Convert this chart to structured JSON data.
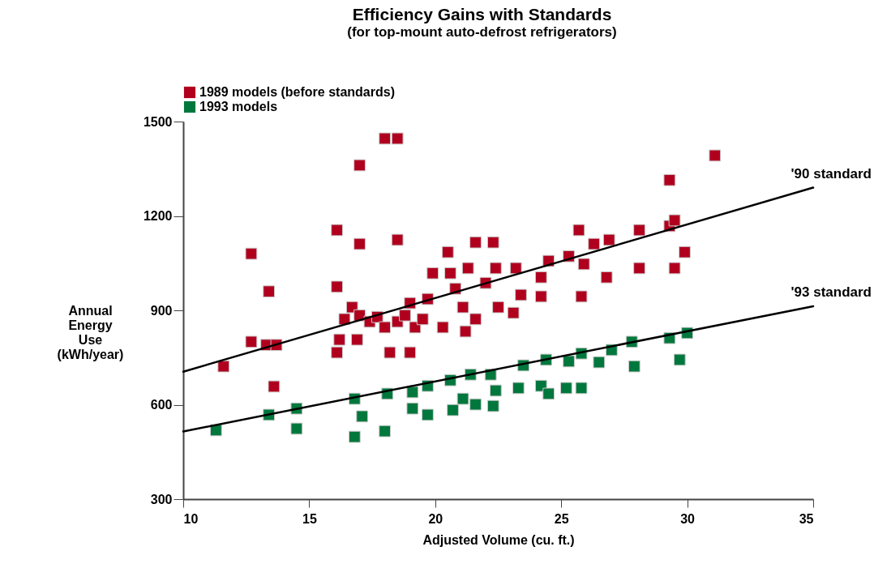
{
  "chart_data": {
    "type": "scatter",
    "title": "Efficiency Gains with Standards",
    "subtitle": "(for top-mount auto-defrost refrigerators)",
    "xlabel": "Adjusted Volume (cu. ft.)",
    "ylabel": "Annual Energy Use (kWh/year)",
    "xlim": [
      10,
      35
    ],
    "xticks": [
      10,
      15,
      20,
      25,
      30,
      35
    ],
    "ylim": [
      300,
      1500
    ],
    "yticks": [
      300,
      600,
      900,
      1200,
      1500
    ],
    "grid": false,
    "legend": "top",
    "series": [
      {
        "name": "1989 models (before standards)",
        "color": "#b0001e",
        "marker": "square",
        "x": [
          11.6,
          12.7,
          12.7,
          13.4,
          13.3,
          13.7,
          13.6,
          16.1,
          16.1,
          16.1,
          17.0,
          17.0,
          18.0,
          18.5,
          18.5,
          18.2,
          19.0,
          16.4,
          16.7,
          17.0,
          17.4,
          17.7,
          18.0,
          18.5,
          18.8,
          19.0,
          19.2,
          19.5,
          16.9,
          16.2,
          20.5,
          21.6,
          22.3,
          19.9,
          20.6,
          21.3,
          22.4,
          23.2,
          25.7,
          26.9,
          26.3,
          25.9,
          24.5,
          26.8,
          25.8,
          23.4,
          24.2,
          23.1,
          22.5,
          22.0,
          20.8,
          21.1,
          19.7,
          24.2,
          25.3,
          31.1,
          29.3,
          28.1,
          29.3,
          29.5,
          29.9,
          28.1,
          29.5,
          20.3,
          21.2,
          21.6
        ],
        "values": [
          722,
          1080,
          800,
          960,
          790,
          790,
          658,
          1155,
          975,
          766,
          1361,
          1111,
          1446,
          1446,
          1124,
          766,
          766,
          872,
          910,
          884,
          864,
          879,
          846,
          864,
          884,
          923,
          846,
          872,
          807,
          807,
          1085,
          1116,
          1116,
          1018,
          1018,
          1034,
          1034,
          1034,
          1155,
          1124,
          1111,
          1047,
          1057,
          1005,
          944,
          949,
          944,
          892,
          910,
          987,
          969,
          910,
          936,
          1005,
          1072,
          1392,
          1314,
          1155,
          1168,
          1186,
          1085,
          1034,
          1034,
          846,
          833,
          872
        ]
      },
      {
        "name": "1993 models",
        "color": "#00773c",
        "marker": "square",
        "x": [
          11.3,
          13.4,
          14.5,
          14.5,
          16.8,
          16.8,
          17.1,
          18.1,
          18.0,
          19.1,
          19.1,
          19.7,
          19.7,
          20.6,
          21.4,
          21.1,
          20.7,
          21.6,
          22.4,
          22.3,
          22.2,
          23.3,
          23.5,
          24.2,
          24.5,
          24.4,
          25.2,
          25.3,
          25.8,
          25.8,
          26.5,
          27.0,
          27.8,
          27.9,
          29.3,
          30.0,
          29.7
        ],
        "values": [
          519,
          568,
          588,
          524,
          619,
          498,
          563,
          635,
          516,
          640,
          588,
          660,
          568,
          678,
          696,
          619,
          583,
          601,
          645,
          596,
          696,
          653,
          725,
          660,
          635,
          743,
          653,
          738,
          763,
          653,
          735,
          774,
          800,
          722,
          812,
          828,
          743
        ]
      },
      {
        "name": "'90 standard",
        "type": "line",
        "color": "#000000",
        "x": [
          10,
          35
        ],
        "values": [
          705,
          1290
        ]
      },
      {
        "name": "'93 standard",
        "type": "line",
        "color": "#000000",
        "x": [
          10,
          35
        ],
        "values": [
          515,
          913
        ]
      }
    ]
  }
}
